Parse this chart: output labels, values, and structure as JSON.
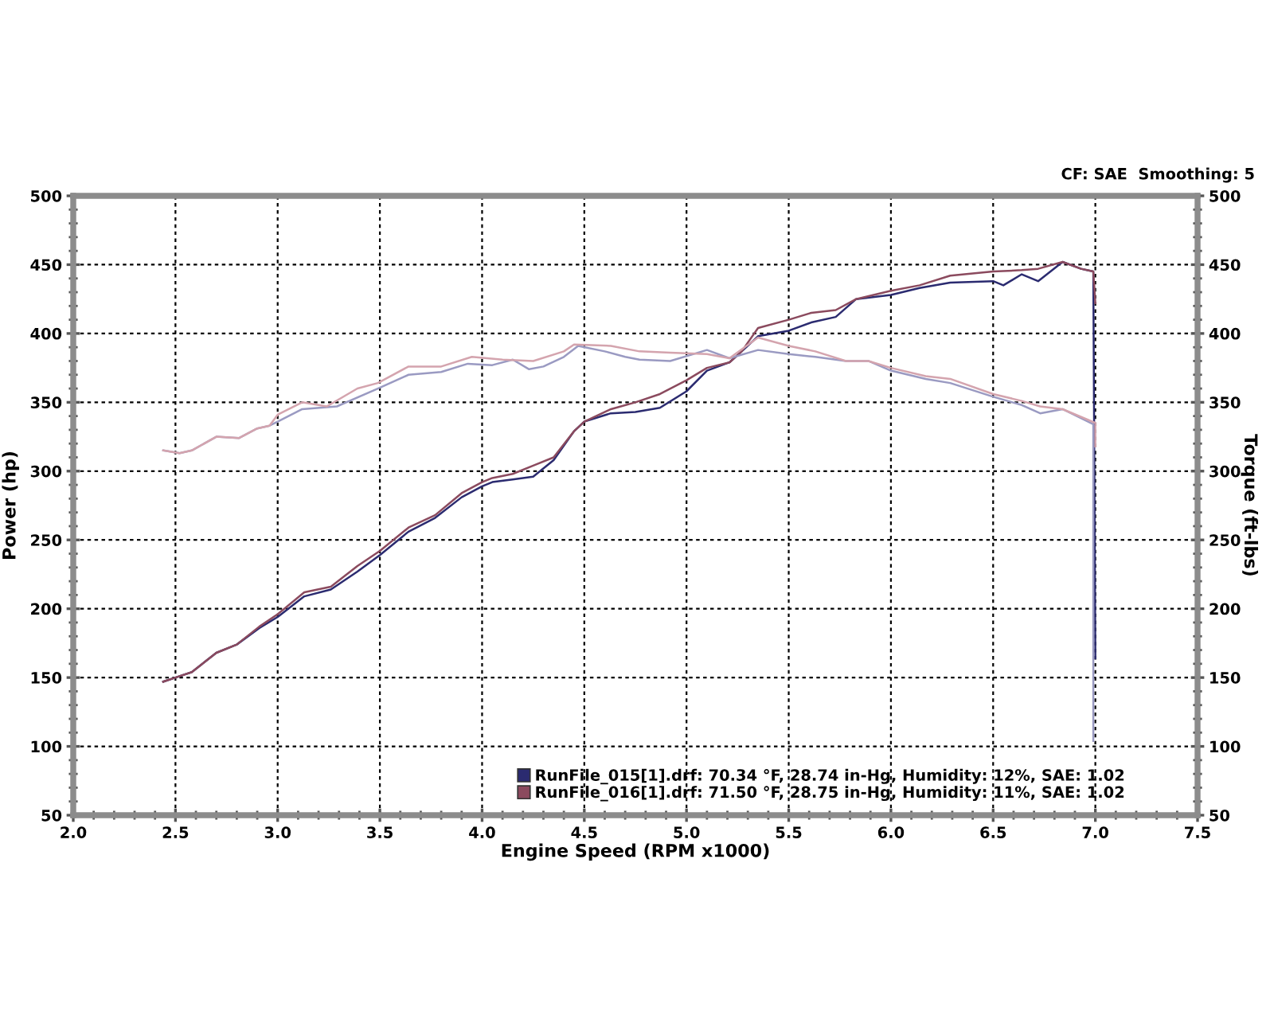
{
  "chart_data": {
    "type": "line",
    "xlabel": "Engine Speed (RPM x1000)",
    "ylabel": "Power (hp)",
    "y2label": "Torque (ft-lbs)",
    "annotations": [
      "CF: SAE  Smoothing: 5"
    ],
    "xlim": [
      2,
      7.5
    ],
    "xticks": [
      {
        "value": 2,
        "label": "2.0"
      },
      2.5,
      {
        "value": 3,
        "label": "3.0"
      },
      3.5,
      {
        "value": 4,
        "label": "4.0"
      },
      4.5,
      {
        "value": 5,
        "label": "5.0"
      },
      5.5,
      {
        "value": 6,
        "label": "6.0"
      },
      6.5,
      {
        "value": 7,
        "label": "7.0"
      },
      7.5
    ],
    "ylim": [
      50,
      500
    ],
    "yticks": [
      50,
      100,
      150,
      200,
      250,
      300,
      350,
      400,
      450,
      500
    ],
    "y2lim": [
      50,
      500
    ],
    "y2ticks": [
      50,
      100,
      150,
      200,
      250,
      300,
      350,
      400,
      450,
      500
    ],
    "grid": true,
    "legend": "bottom right",
    "series": [
      {
        "name": "RunFile_015[1].drf: 70.34 °F, 28.74 in-Hg, Humidity: 12%, SAE: 1.02",
        "color": "#2b2b70",
        "x": [
          2.44,
          2.5,
          2.58,
          2.7,
          2.8,
          2.91,
          3.0,
          3.13,
          3.26,
          3.39,
          3.5,
          3.64,
          3.77,
          3.9,
          4.0,
          4.05,
          4.15,
          4.25,
          4.35,
          4.45,
          4.5,
          4.63,
          4.75,
          4.87,
          5.0,
          5.1,
          5.21,
          5.27,
          5.35,
          5.5,
          5.61,
          5.73,
          5.83,
          6.0,
          6.14,
          6.29,
          6.5,
          6.55,
          6.64,
          6.72,
          6.84,
          6.93,
          6.99,
          7.0
        ],
        "values": [
          147,
          150,
          154,
          168,
          174,
          186,
          194,
          209,
          214,
          227,
          239,
          256,
          266,
          281,
          289,
          292,
          294,
          296,
          308,
          329,
          336,
          342,
          343,
          346,
          358,
          373,
          379,
          387,
          398,
          402,
          408,
          412,
          425,
          428,
          433,
          437,
          438,
          435,
          443,
          438,
          452,
          447,
          445,
          164
        ]
      },
      {
        "name": "RunFile_016[1].drf: 71.50 °F, 28.75 in-Hg, Humidity: 11%, SAE: 1.02",
        "color": "#8b4a5e",
        "x": [
          2.44,
          2.5,
          2.58,
          2.7,
          2.8,
          2.91,
          3.0,
          3.13,
          3.26,
          3.39,
          3.5,
          3.64,
          3.77,
          3.9,
          4.0,
          4.05,
          4.15,
          4.25,
          4.35,
          4.45,
          4.5,
          4.63,
          4.75,
          4.87,
          5.0,
          5.1,
          5.21,
          5.27,
          5.35,
          5.5,
          5.61,
          5.73,
          5.83,
          6.0,
          6.14,
          6.29,
          6.5,
          6.64,
          6.72,
          6.84,
          6.93,
          6.99,
          7.0
        ],
        "values": [
          147,
          150,
          154,
          168,
          174,
          187,
          196,
          212,
          216,
          231,
          242,
          259,
          268,
          284,
          292,
          295,
          298,
          304,
          310,
          329,
          336,
          345,
          350,
          356,
          366,
          375,
          379,
          387,
          404,
          410,
          415,
          417,
          425,
          431,
          435,
          442,
          445,
          446,
          447,
          452,
          447,
          445,
          422
        ]
      },
      {
        "color": "#9a9ac2",
        "x": [
          2.44,
          2.52,
          2.58,
          2.7,
          2.81,
          2.9,
          2.96,
          3.0,
          3.12,
          3.29,
          3.49,
          3.64,
          3.8,
          3.93,
          4.05,
          4.15,
          4.23,
          4.3,
          4.4,
          4.47,
          4.6,
          4.7,
          4.77,
          4.92,
          5.1,
          5.21,
          5.35,
          5.5,
          5.63,
          5.78,
          5.89,
          6.0,
          6.17,
          6.29,
          6.5,
          6.64,
          6.73,
          6.84,
          6.99,
          6.99
        ],
        "values": [
          315,
          313,
          315,
          325,
          324,
          331,
          333,
          336,
          345,
          347,
          360,
          370,
          372,
          378,
          377,
          381,
          374,
          376,
          383,
          391,
          387,
          383,
          381,
          380,
          388,
          382,
          388,
          385,
          383,
          380,
          380,
          373,
          367,
          364,
          354,
          348,
          342,
          345,
          334,
          104
        ]
      },
      {
        "color": "#d4a4ae",
        "x": [
          2.44,
          2.52,
          2.58,
          2.7,
          2.81,
          2.9,
          2.96,
          3.0,
          3.12,
          3.24,
          3.39,
          3.49,
          3.64,
          3.8,
          3.95,
          4.1,
          4.25,
          4.4,
          4.45,
          4.63,
          4.77,
          4.92,
          5.1,
          5.21,
          5.35,
          5.5,
          5.63,
          5.78,
          5.89,
          6.0,
          6.17,
          6.29,
          6.5,
          6.64,
          6.73,
          6.84,
          7.0,
          7.0
        ],
        "values": [
          315,
          313,
          315,
          325,
          324,
          331,
          333,
          341,
          350,
          347,
          360,
          364,
          376,
          376,
          383,
          381,
          380,
          387,
          392,
          391,
          387,
          386,
          385,
          382,
          397,
          391,
          387,
          380,
          380,
          375,
          369,
          367,
          356,
          351,
          347,
          345,
          335,
          318
        ]
      }
    ]
  }
}
